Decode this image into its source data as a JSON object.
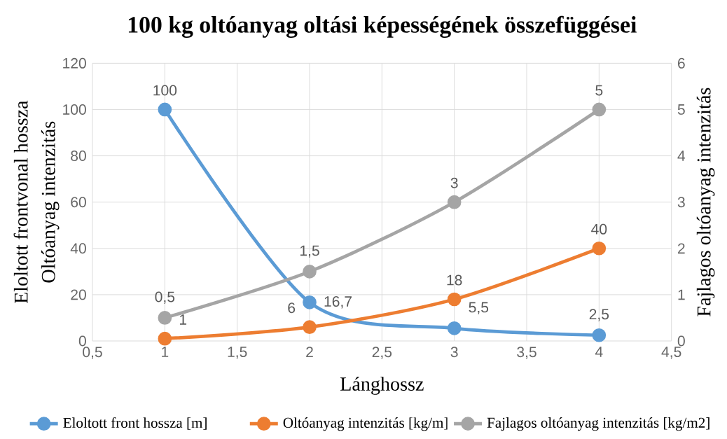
{
  "chart_data": {
    "type": "line",
    "title": "100 kg oltóanyag oltási képességének összefüggései",
    "xlabel": "Lánghossz",
    "ylabel": "Eloltott frontvonal hossza",
    "y2label": "Fajlagos oltóanyag intenzitás",
    "annotations": [
      "Oltóanyag intenzitás"
    ],
    "x": [
      1,
      2,
      3,
      4
    ],
    "xlim": [
      0.5,
      4.5
    ],
    "xticks": [
      {
        "value": 0.5,
        "label": "0,5"
      },
      1,
      {
        "value": 1.5,
        "label": "1,5"
      },
      2,
      {
        "value": 2.5,
        "label": "2,5"
      },
      3,
      {
        "value": 3.5,
        "label": "3,5"
      },
      4,
      {
        "value": 4.5,
        "label": "4,5"
      }
    ],
    "ylim": [
      0,
      120
    ],
    "yticks": [
      0,
      20,
      40,
      60,
      80,
      100,
      120
    ],
    "y2lim": [
      0,
      6
    ],
    "y2ticks": [
      0,
      1,
      2,
      3,
      4,
      5,
      6
    ],
    "grid": true,
    "legend": "bottom",
    "marker": "circle",
    "line_style": "solid",
    "series": [
      {
        "name": "Eloltott front hossza [m]",
        "color": "#5b9bd5",
        "values": [
          100,
          16.7,
          5.5,
          2.5
        ],
        "value_labels": [
          "100",
          "16,7",
          "5,5",
          "2,5"
        ]
      },
      {
        "name": "Oltóanyag intenzitás [kg/m]",
        "color": "#ed7d31",
        "values": [
          1,
          6,
          18,
          40
        ],
        "value_labels": [
          "1",
          "6",
          "18",
          "40"
        ]
      },
      {
        "name": "Fajlagos oltóanyag intenzitás [kg/m2]",
        "color": "#a5a5a5",
        "axis": "y2",
        "values": [
          0.5,
          1.5,
          3,
          5
        ],
        "value_labels": [
          "0,5",
          "1,5",
          "3",
          "5"
        ]
      }
    ]
  }
}
